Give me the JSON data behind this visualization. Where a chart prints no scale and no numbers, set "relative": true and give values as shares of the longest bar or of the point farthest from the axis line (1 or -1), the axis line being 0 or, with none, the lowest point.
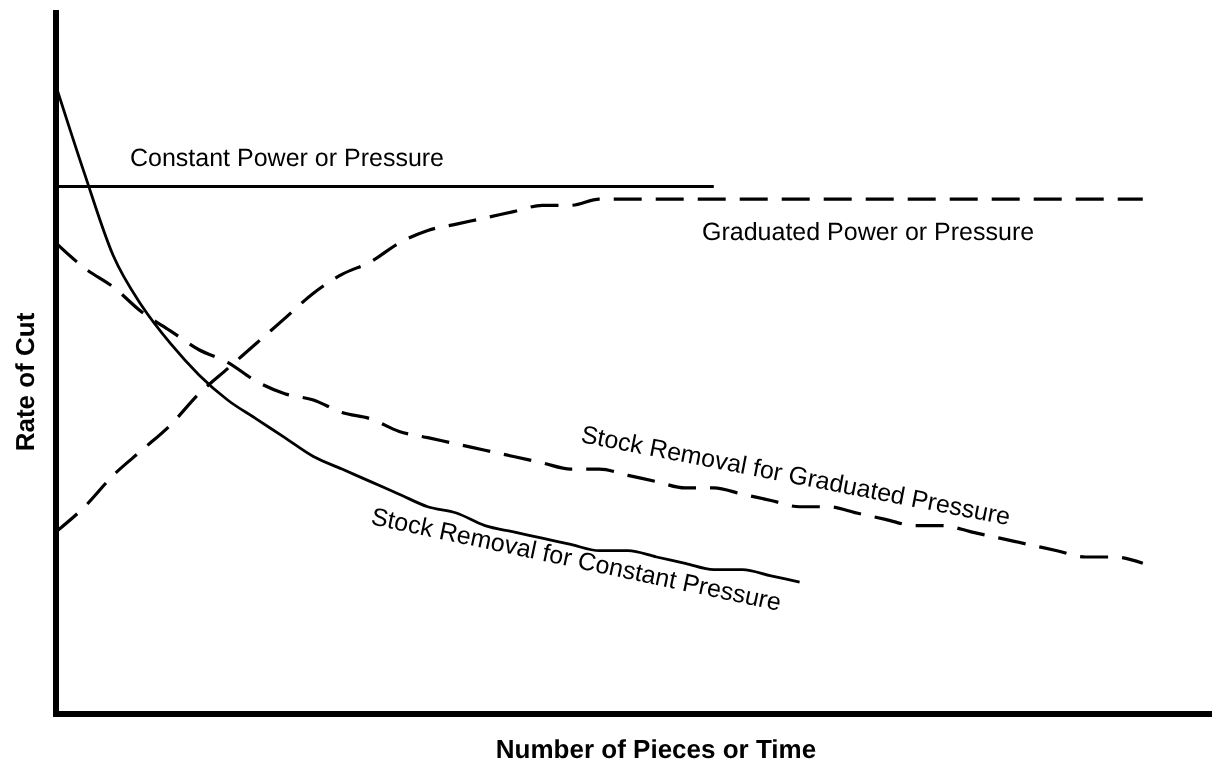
{
  "chart_data": {
    "type": "line",
    "relative": true,
    "xlabel": "Number of Pieces or Time",
    "ylabel": "Rate of Cut",
    "categories": [
      null,
      null,
      null,
      null,
      null,
      null,
      null,
      null,
      null,
      null,
      null,
      null,
      null,
      null,
      null,
      null,
      null,
      null,
      null,
      null,
      null,
      null,
      null,
      null,
      null,
      null,
      null,
      null,
      null,
      null,
      null,
      null,
      null,
      null,
      null,
      null,
      null,
      null,
      null,
      null,
      null
    ],
    "grid": false,
    "legend": false,
    "marker": "none",
    "series": [
      {
        "name": "Constant Power or Pressure",
        "color": "#000000",
        "line_style": "solid",
        "values": [
          0.84,
          0.84,
          0.84,
          0.84,
          0.84,
          0.84,
          0.84,
          0.84,
          0.84,
          0.84,
          0.84,
          0.84,
          0.84,
          0.84,
          0.84,
          0.84,
          0.84,
          0.84,
          0.84,
          0.84,
          0.84,
          0.84,
          0.84,
          0.84,
          null,
          null,
          null,
          null,
          null,
          null,
          null,
          null,
          null,
          null,
          null,
          null,
          null,
          null,
          null,
          null,
          null
        ]
      },
      {
        "name": "Graduated Power or Pressure",
        "color": "#000000",
        "line_style": "dashed",
        "values": [
          0.29,
          0.33,
          0.38,
          0.42,
          0.46,
          0.51,
          0.55,
          0.59,
          0.63,
          0.67,
          0.7,
          0.72,
          0.75,
          0.77,
          0.78,
          0.79,
          0.8,
          0.81,
          0.81,
          0.82,
          0.82,
          0.82,
          0.82,
          0.82,
          0.82,
          0.82,
          0.82,
          0.82,
          0.82,
          0.82,
          0.82,
          0.82,
          0.82,
          0.82,
          0.82,
          0.82,
          0.82,
          0.82,
          0.82,
          null,
          null
        ]
      },
      {
        "name": "Stock Removal for Graduated Pressure",
        "color": "#000000",
        "line_style": "dashed",
        "values": [
          0.75,
          0.71,
          0.68,
          0.64,
          0.61,
          0.58,
          0.56,
          0.53,
          0.51,
          0.5,
          0.48,
          0.47,
          0.45,
          0.44,
          0.43,
          0.42,
          0.41,
          0.4,
          0.39,
          0.39,
          0.38,
          0.37,
          0.36,
          0.36,
          0.35,
          0.34,
          0.33,
          0.33,
          0.32,
          0.31,
          0.3,
          0.3,
          0.29,
          0.28,
          0.27,
          0.26,
          0.25,
          0.25,
          0.24,
          null,
          null
        ]
      },
      {
        "name": "Stock Removal for Constant Pressure",
        "color": "#000000",
        "line_style": "solid",
        "values": [
          1.0,
          0.86,
          0.73,
          0.65,
          0.59,
          0.54,
          0.5,
          0.47,
          0.44,
          0.41,
          0.39,
          0.37,
          0.35,
          0.33,
          0.32,
          0.3,
          0.29,
          0.28,
          0.27,
          0.26,
          0.26,
          0.25,
          0.24,
          0.23,
          0.23,
          0.22,
          0.21,
          null,
          null,
          null,
          null,
          null,
          null,
          null,
          null,
          null,
          null,
          null,
          null,
          null,
          null
        ]
      }
    ]
  }
}
